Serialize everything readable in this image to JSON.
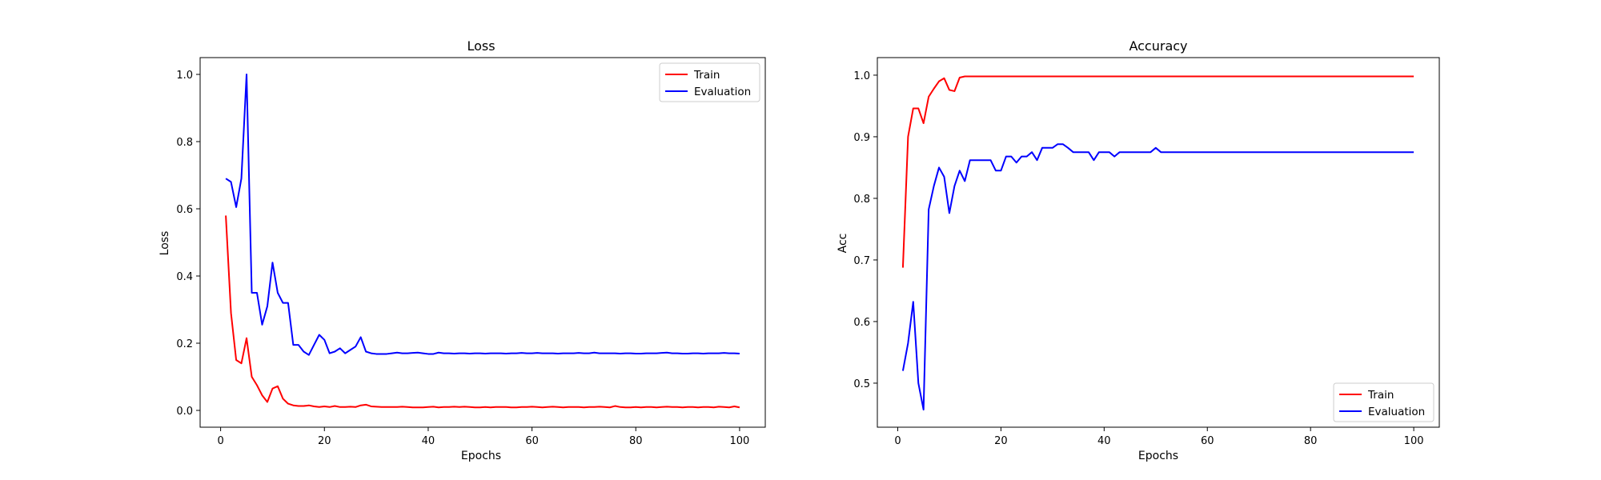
{
  "chart_data": [
    {
      "type": "line",
      "title": "Loss",
      "xlabel": "Epochs",
      "ylabel": "Loss",
      "xlim": [
        -3.95,
        104.95
      ],
      "ylim": [
        -0.05,
        1.05
      ],
      "xticks": [
        0,
        20,
        40,
        60,
        80,
        100
      ],
      "yticks": [
        0.0,
        0.2,
        0.4,
        0.6,
        0.8,
        1.0
      ],
      "xtick_labels": [
        "0",
        "20",
        "40",
        "60",
        "80",
        "100"
      ],
      "ytick_labels": [
        "0.0",
        "0.2",
        "0.4",
        "0.6",
        "0.8",
        "1.0"
      ],
      "grid": false,
      "legend_position": "top-right",
      "x": [
        1,
        2,
        3,
        4,
        5,
        6,
        7,
        8,
        9,
        10,
        11,
        12,
        13,
        14,
        15,
        16,
        17,
        18,
        19,
        20,
        21,
        22,
        23,
        24,
        25,
        26,
        27,
        28,
        29,
        30,
        31,
        32,
        33,
        34,
        35,
        36,
        37,
        38,
        39,
        40,
        41,
        42,
        43,
        44,
        45,
        46,
        47,
        48,
        49,
        50,
        51,
        52,
        53,
        54,
        55,
        56,
        57,
        58,
        59,
        60,
        61,
        62,
        63,
        64,
        65,
        66,
        67,
        68,
        69,
        70,
        71,
        72,
        73,
        74,
        75,
        76,
        77,
        78,
        79,
        80,
        81,
        82,
        83,
        84,
        85,
        86,
        87,
        88,
        89,
        90,
        91,
        92,
        93,
        94,
        95,
        96,
        97,
        98,
        99,
        100
      ],
      "series": [
        {
          "name": "Train",
          "color": "#ff0000",
          "values": [
            0.58,
            0.29,
            0.15,
            0.14,
            0.215,
            0.1,
            0.075,
            0.045,
            0.025,
            0.065,
            0.072,
            0.035,
            0.02,
            0.015,
            0.013,
            0.013,
            0.015,
            0.012,
            0.01,
            0.012,
            0.01,
            0.013,
            0.01,
            0.01,
            0.011,
            0.01,
            0.015,
            0.017,
            0.012,
            0.011,
            0.01,
            0.01,
            0.01,
            0.01,
            0.011,
            0.01,
            0.009,
            0.009,
            0.009,
            0.01,
            0.011,
            0.009,
            0.01,
            0.01,
            0.011,
            0.01,
            0.011,
            0.01,
            0.009,
            0.009,
            0.01,
            0.009,
            0.01,
            0.01,
            0.01,
            0.009,
            0.009,
            0.01,
            0.01,
            0.011,
            0.01,
            0.009,
            0.01,
            0.011,
            0.01,
            0.009,
            0.01,
            0.01,
            0.01,
            0.009,
            0.01,
            0.01,
            0.011,
            0.01,
            0.009,
            0.013,
            0.01,
            0.009,
            0.009,
            0.01,
            0.009,
            0.01,
            0.01,
            0.009,
            0.01,
            0.011,
            0.01,
            0.01,
            0.009,
            0.01,
            0.01,
            0.009,
            0.01,
            0.01,
            0.009,
            0.011,
            0.01,
            0.009,
            0.012,
            0.009
          ]
        },
        {
          "name": "Evaluation",
          "color": "#0000ff",
          "values": [
            0.69,
            0.68,
            0.605,
            0.69,
            1.0,
            0.35,
            0.35,
            0.255,
            0.31,
            0.44,
            0.35,
            0.32,
            0.32,
            0.195,
            0.195,
            0.175,
            0.165,
            0.195,
            0.225,
            0.21,
            0.17,
            0.175,
            0.185,
            0.17,
            0.18,
            0.19,
            0.218,
            0.175,
            0.17,
            0.168,
            0.168,
            0.168,
            0.17,
            0.172,
            0.17,
            0.17,
            0.171,
            0.172,
            0.17,
            0.168,
            0.168,
            0.172,
            0.17,
            0.17,
            0.169,
            0.17,
            0.17,
            0.169,
            0.17,
            0.17,
            0.169,
            0.17,
            0.17,
            0.17,
            0.169,
            0.17,
            0.17,
            0.171,
            0.17,
            0.17,
            0.171,
            0.17,
            0.17,
            0.17,
            0.169,
            0.17,
            0.17,
            0.17,
            0.171,
            0.17,
            0.17,
            0.172,
            0.17,
            0.17,
            0.17,
            0.17,
            0.169,
            0.17,
            0.17,
            0.169,
            0.169,
            0.17,
            0.17,
            0.17,
            0.171,
            0.172,
            0.17,
            0.17,
            0.169,
            0.169,
            0.17,
            0.17,
            0.169,
            0.17,
            0.17,
            0.17,
            0.171,
            0.17,
            0.17,
            0.169
          ]
        }
      ]
    },
    {
      "type": "line",
      "title": "Accuracy",
      "xlabel": "Epochs",
      "ylabel": "Acc",
      "xlim": [
        -3.95,
        104.95
      ],
      "ylim": [
        0.4285,
        1.0285
      ],
      "xticks": [
        0,
        20,
        40,
        60,
        80,
        100
      ],
      "yticks": [
        0.5,
        0.6,
        0.7,
        0.8,
        0.9,
        1.0
      ],
      "xtick_labels": [
        "0",
        "20",
        "40",
        "60",
        "80",
        "100"
      ],
      "ytick_labels": [
        "0.5",
        "0.6",
        "0.7",
        "0.8",
        "0.9",
        "1.0"
      ],
      "grid": false,
      "legend_position": "bottom-right",
      "x": [
        1,
        2,
        3,
        4,
        5,
        6,
        7,
        8,
        9,
        10,
        11,
        12,
        13,
        14,
        15,
        16,
        17,
        18,
        19,
        20,
        21,
        22,
        23,
        24,
        25,
        26,
        27,
        28,
        29,
        30,
        31,
        32,
        33,
        34,
        35,
        36,
        37,
        38,
        39,
        40,
        41,
        42,
        43,
        44,
        45,
        46,
        47,
        48,
        49,
        50,
        51,
        52,
        53,
        54,
        55,
        56,
        57,
        58,
        59,
        60,
        61,
        62,
        63,
        64,
        65,
        66,
        67,
        68,
        69,
        70,
        71,
        72,
        73,
        74,
        75,
        76,
        77,
        78,
        79,
        80,
        81,
        82,
        83,
        84,
        85,
        86,
        87,
        88,
        89,
        90,
        91,
        92,
        93,
        94,
        95,
        96,
        97,
        98,
        99,
        100
      ],
      "series": [
        {
          "name": "Train",
          "color": "#ff0000",
          "values": [
            0.6875,
            0.9,
            0.946,
            0.946,
            0.922,
            0.965,
            0.978,
            0.99,
            0.995,
            0.976,
            0.974,
            0.996,
            0.998,
            0.998,
            0.998,
            0.998,
            0.998,
            0.998,
            0.998,
            0.998,
            0.998,
            0.998,
            0.998,
            0.998,
            0.998,
            0.998,
            0.998,
            0.998,
            0.998,
            0.998,
            0.998,
            0.998,
            0.998,
            0.998,
            0.998,
            0.998,
            0.998,
            0.998,
            0.998,
            0.998,
            0.998,
            0.998,
            0.998,
            0.998,
            0.998,
            0.998,
            0.998,
            0.998,
            0.998,
            0.998,
            0.998,
            0.998,
            0.998,
            0.998,
            0.998,
            0.998,
            0.998,
            0.998,
            0.998,
            0.998,
            0.998,
            0.998,
            0.998,
            0.998,
            0.998,
            0.998,
            0.998,
            0.998,
            0.998,
            0.998,
            0.998,
            0.998,
            0.998,
            0.998,
            0.998,
            0.998,
            0.998,
            0.998,
            0.998,
            0.998,
            0.998,
            0.998,
            0.998,
            0.998,
            0.998,
            0.998,
            0.998,
            0.998,
            0.998,
            0.998,
            0.998,
            0.998,
            0.998,
            0.998,
            0.998,
            0.998,
            0.998,
            0.998,
            0.998,
            0.998
          ]
        },
        {
          "name": "Evaluation",
          "color": "#0000ff",
          "values": [
            0.52,
            0.565,
            0.632,
            0.5,
            0.457,
            0.782,
            0.82,
            0.85,
            0.835,
            0.776,
            0.82,
            0.845,
            0.828,
            0.862,
            0.862,
            0.862,
            0.862,
            0.862,
            0.845,
            0.845,
            0.868,
            0.868,
            0.858,
            0.868,
            0.868,
            0.875,
            0.862,
            0.882,
            0.882,
            0.882,
            0.888,
            0.888,
            0.882,
            0.875,
            0.875,
            0.875,
            0.875,
            0.862,
            0.875,
            0.875,
            0.875,
            0.868,
            0.875,
            0.875,
            0.875,
            0.875,
            0.875,
            0.875,
            0.875,
            0.882,
            0.875,
            0.875,
            0.875,
            0.875,
            0.875,
            0.875,
            0.875,
            0.875,
            0.875,
            0.875,
            0.875,
            0.875,
            0.875,
            0.875,
            0.875,
            0.875,
            0.875,
            0.875,
            0.875,
            0.875,
            0.875,
            0.875,
            0.875,
            0.875,
            0.875,
            0.875,
            0.875,
            0.875,
            0.875,
            0.875,
            0.875,
            0.875,
            0.875,
            0.875,
            0.875,
            0.875,
            0.875,
            0.875,
            0.875,
            0.875,
            0.875,
            0.875,
            0.875,
            0.875,
            0.875,
            0.875,
            0.875,
            0.875,
            0.875,
            0.875
          ]
        }
      ]
    }
  ]
}
